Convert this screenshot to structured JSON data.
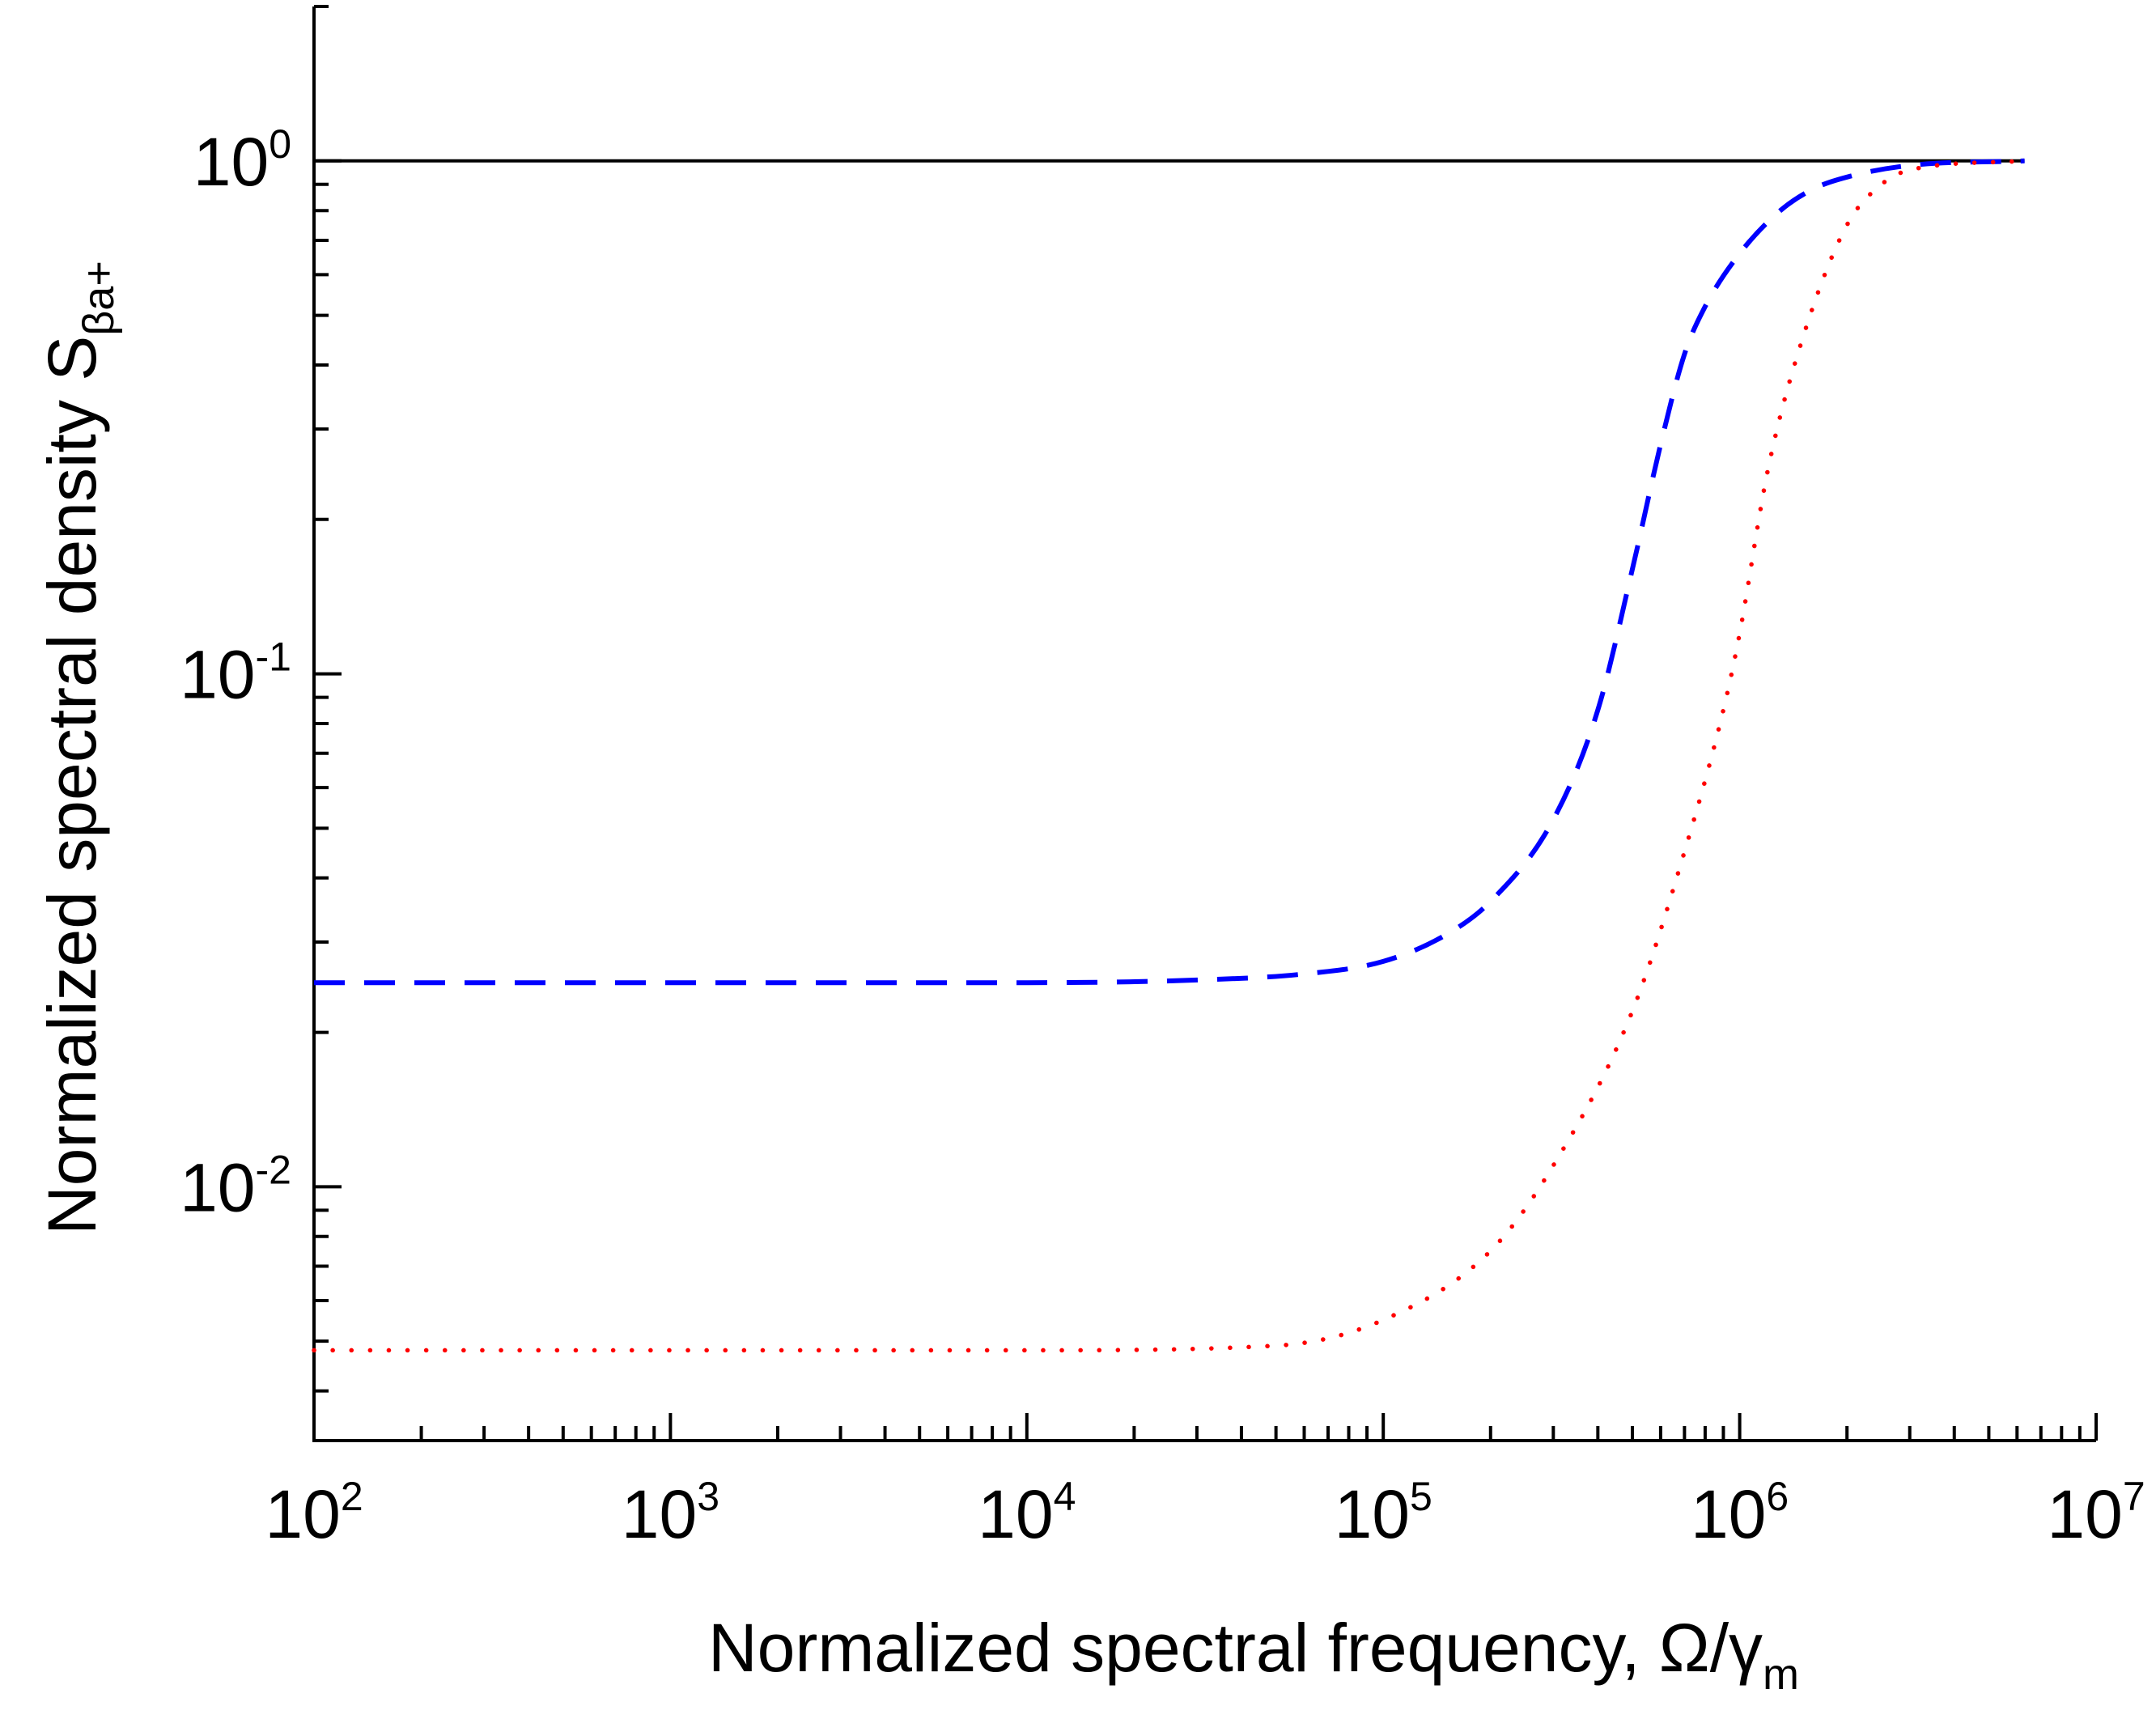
{
  "chart_data": {
    "type": "line",
    "title": "",
    "xlabel": {
      "main": "Normalized spectral frequency, ",
      "symbol": "Ω/γ",
      "subscript": "m"
    },
    "ylabel": {
      "main": "Normalized spectral density S",
      "subscript": "βa+"
    },
    "xscale": "log",
    "yscale": "log",
    "xlim": [
      100,
      10000000
    ],
    "ylim": [
      0.0032,
      2
    ],
    "x_ticks": [
      {
        "base": "10",
        "exp": "2",
        "value": 100
      },
      {
        "base": "10",
        "exp": "3",
        "value": 1000
      },
      {
        "base": "10",
        "exp": "4",
        "value": 10000
      },
      {
        "base": "10",
        "exp": "5",
        "value": 100000
      },
      {
        "base": "10",
        "exp": "6",
        "value": 1000000
      },
      {
        "base": "10",
        "exp": "7",
        "value": 10000000
      }
    ],
    "y_ticks": [
      {
        "base": "10",
        "exp": "-2",
        "value": 0.01
      },
      {
        "base": "10",
        "exp": "-1",
        "value": 0.1
      },
      {
        "base": "10",
        "exp": "0",
        "value": 1
      }
    ],
    "grid": false,
    "legend": "none",
    "series": [
      {
        "color": "#000000",
        "style": "solid",
        "x": [
          100,
          6300000
        ],
        "y": [
          1.0,
          1.0
        ]
      },
      {
        "color": "#0000ff",
        "style": "dashed",
        "x": [
          100,
          1000,
          10000,
          30000,
          60000,
          100000,
          150000,
          200000,
          300000,
          400000,
          500000,
          600000,
          700000,
          800000,
          1000000,
          1300000,
          1600000,
          2000000,
          3000000,
          6300000
        ],
        "y": [
          0.025,
          0.025,
          0.025,
          0.0253,
          0.026,
          0.0275,
          0.031,
          0.036,
          0.052,
          0.085,
          0.16,
          0.28,
          0.42,
          0.52,
          0.66,
          0.8,
          0.88,
          0.93,
          0.98,
          1.0
        ]
      },
      {
        "color": "#ff0000",
        "style": "dotted",
        "x": [
          100,
          1000,
          10000,
          50000,
          100000,
          200000,
          300000,
          500000,
          700000,
          900000,
          1000000,
          1200000,
          1500000,
          2000000,
          2500000,
          3000000,
          6300000
        ],
        "y": [
          0.0048,
          0.0048,
          0.0048,
          0.0049,
          0.0055,
          0.0075,
          0.011,
          0.022,
          0.045,
          0.085,
          0.12,
          0.25,
          0.45,
          0.75,
          0.9,
          0.96,
          1.0
        ]
      }
    ]
  }
}
